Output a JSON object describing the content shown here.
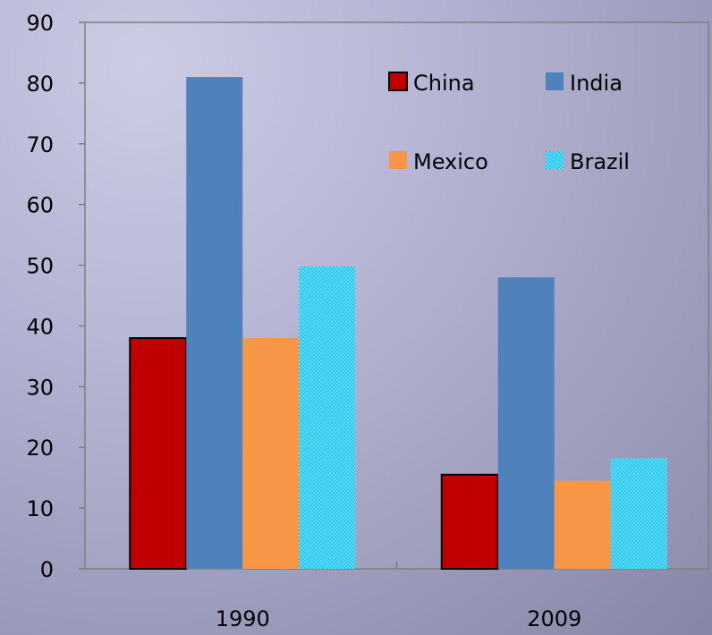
{
  "chart_data": {
    "type": "bar",
    "title": "",
    "xlabel": "",
    "ylabel": "",
    "categories": [
      "1990",
      "2009"
    ],
    "ylim": [
      0,
      90
    ],
    "yticks": [
      0,
      10,
      20,
      30,
      40,
      50,
      60,
      70,
      80,
      90
    ],
    "grid": false,
    "legend_position": "top-right",
    "series": [
      {
        "name": "China",
        "values": [
          38,
          15.5
        ],
        "color": "#c00000",
        "pattern": "solid-outlined"
      },
      {
        "name": "India",
        "values": [
          81,
          48
        ],
        "color": "#4f81bd",
        "pattern": "solid"
      },
      {
        "name": "Mexico",
        "values": [
          38,
          14.5
        ],
        "color": "#f79646",
        "pattern": "solid"
      },
      {
        "name": "Brazil",
        "values": [
          49.8,
          18.2
        ],
        "color": "#1ec8f0",
        "pattern": "dotted"
      }
    ]
  }
}
